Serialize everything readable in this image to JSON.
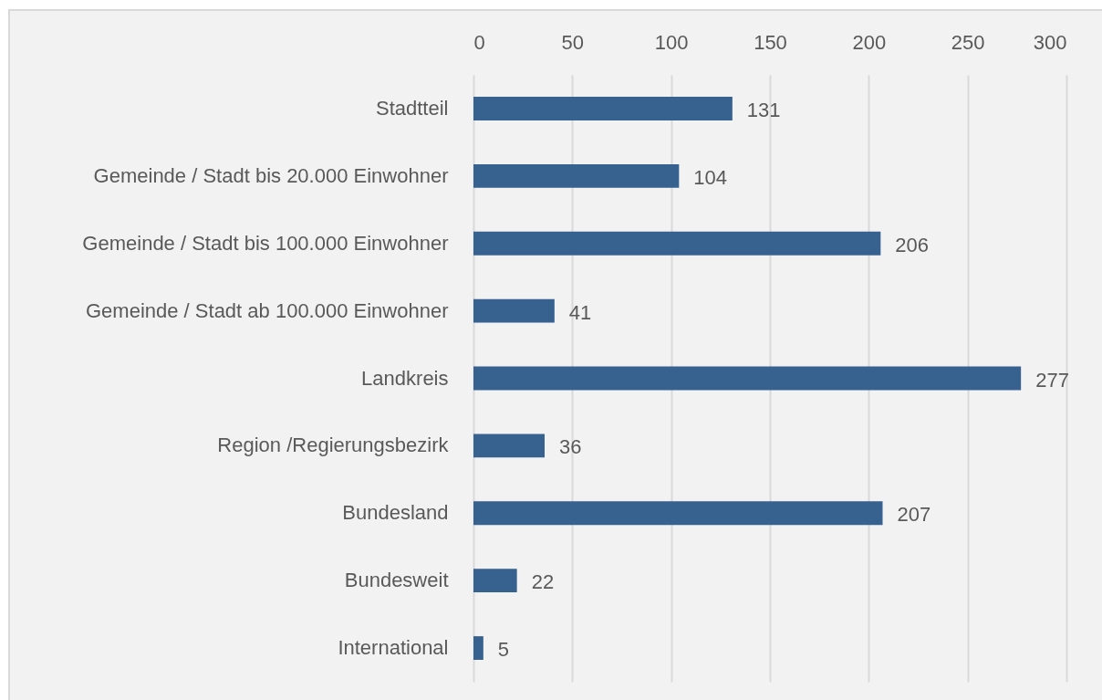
{
  "chart_data": {
    "type": "bar",
    "orientation": "horizontal",
    "categories": [
      "Stadtteil",
      "Gemeinde / Stadt bis 20.000 Einwohner",
      "Gemeinde / Stadt bis 100.000 Einwohner",
      "Gemeinde / Stadt ab 100.000 Einwohner",
      "Landkreis",
      "Region /Regierungsbezirk",
      "Bundesland",
      "Bundesweit",
      "International"
    ],
    "values": [
      131,
      104,
      206,
      41,
      277,
      36,
      207,
      22,
      5
    ],
    "color": "#37618f",
    "xlim": [
      0,
      300
    ],
    "xticks": [
      0,
      50,
      100,
      150,
      200,
      250,
      300
    ],
    "grid": "x",
    "data_labels": true
  }
}
